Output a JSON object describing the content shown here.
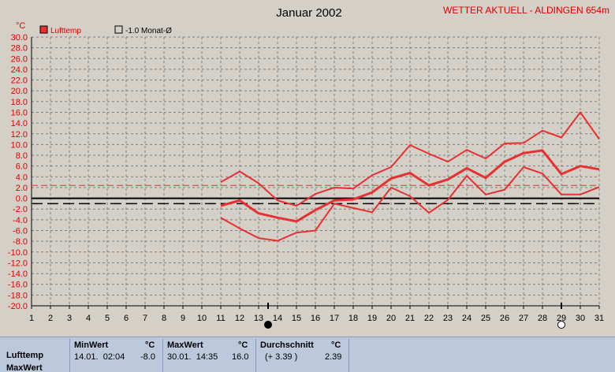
{
  "title": "Januar 2002",
  "station": "WETTER AKTUELL - ALDINGEN 654m",
  "unit": "°C",
  "colors": {
    "series": "#e83030",
    "grid": "#808080",
    "text": "#000000",
    "title_red": "#e00000",
    "zero": "#000000",
    "background": "#d4d0c8"
  },
  "legend": {
    "series_label": "Lufttemp",
    "avg_label": "-1.0 Monat-Ø"
  },
  "moon_icons": [
    {
      "day": 13.5,
      "name": "new-moon-icon"
    },
    {
      "day": 29,
      "name": "full-moon-icon"
    }
  ],
  "chart_data": {
    "type": "line",
    "title": "Januar 2002",
    "x": [
      11,
      12,
      13,
      14,
      15,
      16,
      17,
      18,
      19,
      20,
      21,
      22,
      23,
      24,
      25,
      26,
      27,
      28,
      29,
      30,
      31
    ],
    "xlim": [
      1,
      31
    ],
    "xticks": [
      1,
      2,
      3,
      4,
      5,
      6,
      7,
      8,
      9,
      10,
      11,
      12,
      13,
      14,
      15,
      16,
      17,
      18,
      19,
      20,
      21,
      22,
      23,
      24,
      25,
      26,
      27,
      28,
      29,
      30,
      31
    ],
    "ylim": [
      -20,
      30
    ],
    "ytick_step": 2,
    "ylabel": "°C",
    "grid": true,
    "legend_position": "top-left",
    "series": [
      {
        "name": "Lufttemp",
        "role": "max",
        "values": [
          3.0,
          5.0,
          2.8,
          -0.4,
          -1.4,
          0.8,
          2.0,
          1.8,
          4.3,
          5.8,
          9.9,
          8.3,
          6.8,
          9.0,
          7.4,
          10.2,
          10.3,
          12.6,
          11.3,
          16.0,
          11.0
        ]
      },
      {
        "role": "mean",
        "values": [
          -1.4,
          -0.4,
          -2.8,
          -3.6,
          -4.3,
          -2.2,
          -0.4,
          -0.2,
          1.1,
          3.7,
          4.7,
          2.4,
          3.5,
          5.6,
          3.8,
          6.8,
          8.4,
          8.9,
          4.5,
          6.0,
          5.4
        ]
      },
      {
        "role": "min",
        "values": [
          -3.6,
          -5.6,
          -7.4,
          -7.9,
          -6.4,
          -6.0,
          -1.0,
          -1.8,
          -2.6,
          2.0,
          0.4,
          -2.7,
          -0.3,
          4.2,
          0.7,
          1.6,
          5.8,
          4.6,
          0.7,
          0.7,
          2.1
        ]
      }
    ],
    "reference_lines": [
      {
        "name": "-1.0 Monat-Ø",
        "value": -1.0,
        "style": "dashed"
      },
      {
        "value": 2.39,
        "style": "dashed-red"
      },
      {
        "value": 0.0,
        "style": "solid"
      }
    ]
  },
  "stats": {
    "row_label": "Lufttemp",
    "row_label_partial": "MaxWert",
    "min": {
      "label": "MinWert",
      "unit": "°C",
      "when": "14.01.  02:04",
      "value": "-8.0"
    },
    "max": {
      "label": "MaxWert",
      "unit": "°C",
      "when": "30.01.  14:35",
      "value": "16.0"
    },
    "avg": {
      "label": "Durchschnitt",
      "unit": "°C",
      "delta": "(+ 3.39 )",
      "value": "2.39"
    }
  }
}
